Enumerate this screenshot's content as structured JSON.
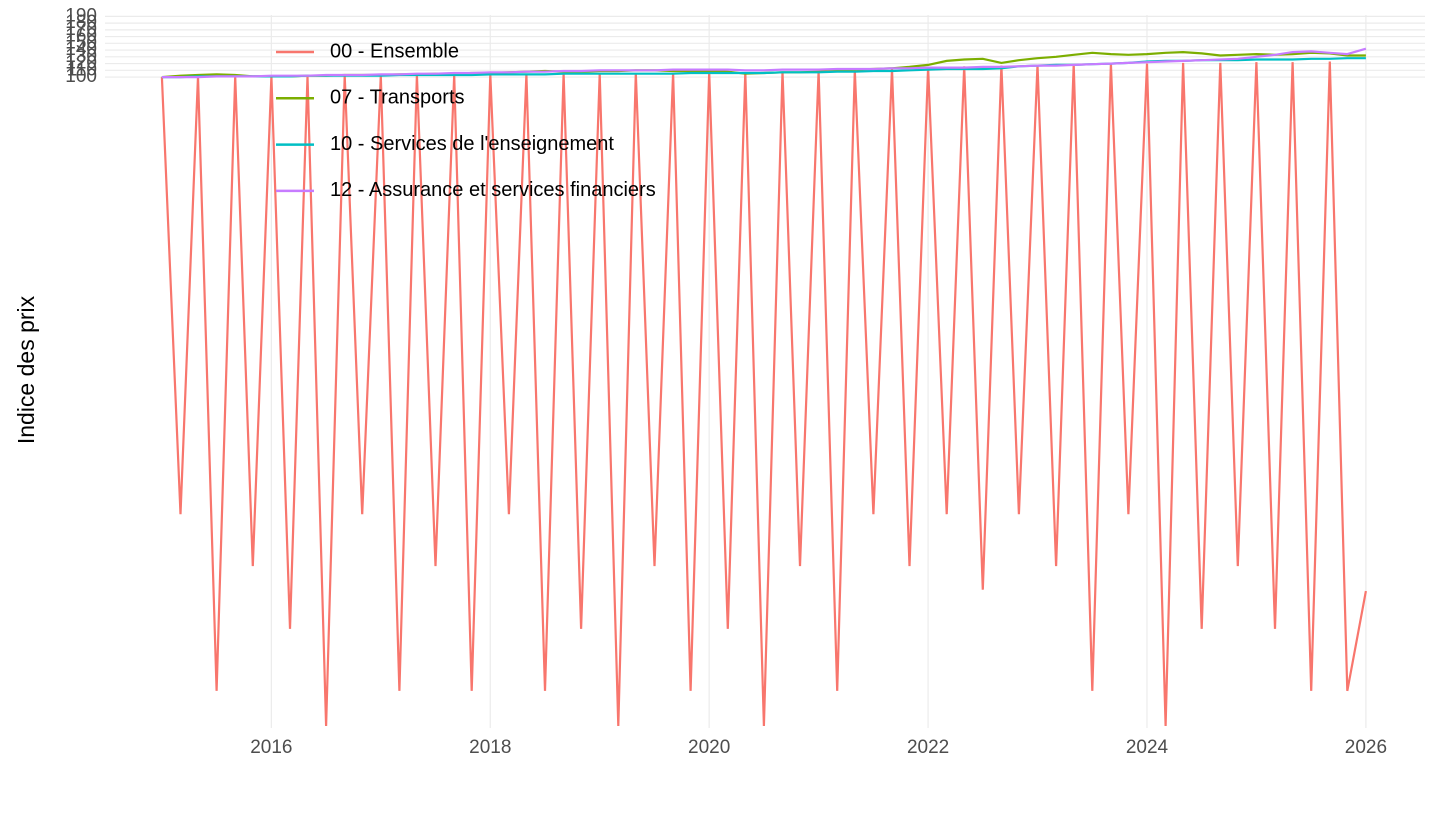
{
  "chart_data": {
    "type": "line",
    "y_label": "Indice des prix",
    "x": [
      2015,
      2015.17,
      2015.33,
      2015.5,
      2015.67,
      2015.83,
      2016,
      2016.17,
      2016.33,
      2016.5,
      2016.67,
      2016.83,
      2017,
      2017.17,
      2017.33,
      2017.5,
      2017.67,
      2017.83,
      2018,
      2018.17,
      2018.33,
      2018.5,
      2018.67,
      2018.83,
      2019,
      2019.17,
      2019.33,
      2019.5,
      2019.67,
      2019.83,
      2020,
      2020.17,
      2020.33,
      2020.5,
      2020.67,
      2020.83,
      2021,
      2021.17,
      2021.33,
      2021.5,
      2021.67,
      2021.83,
      2022,
      2022.17,
      2022.33,
      2022.5,
      2022.67,
      2022.83,
      2023,
      2023.17,
      2023.33,
      2023.5,
      2023.67,
      2023.83,
      2024,
      2024.17,
      2024.33,
      2024.5,
      2024.67,
      2024.83,
      2025,
      2025.17,
      2025.33,
      2025.5,
      2025.67,
      2025.83,
      2026
    ],
    "series": [
      {
        "name": "00 - Ensemble",
        "color": "#F8766D",
        "values": [
          100,
          -548,
          101,
          -810,
          101,
          -625,
          101,
          -718,
          101,
          -862,
          102,
          -548,
          102,
          -810,
          103,
          -625,
          103,
          -810,
          104,
          -548,
          104,
          -810,
          105,
          -718,
          105,
          -862,
          106,
          -625,
          106,
          -810,
          107,
          -718,
          107,
          -862,
          108,
          -625,
          109,
          -810,
          110,
          -548,
          112,
          -625,
          114,
          -548,
          116,
          -660,
          117,
          -548,
          118,
          -625,
          119,
          -810,
          120,
          -548,
          120,
          -862,
          121,
          -718,
          121,
          -625,
          122,
          -718,
          122,
          -810,
          123,
          -810,
          -662
        ]
      },
      {
        "name": "07 - Transports",
        "color": "#7CAE00",
        "values": [
          100,
          102,
          103,
          104,
          103,
          101,
          101,
          101,
          102,
          102,
          103,
          103,
          103,
          104,
          104,
          105,
          105,
          106,
          106,
          107,
          108,
          109,
          108,
          108,
          109,
          109,
          110,
          110,
          109,
          109,
          109,
          108,
          105,
          106,
          107,
          107,
          108,
          109,
          111,
          112,
          113,
          115,
          118,
          124,
          126,
          127,
          121,
          125,
          128,
          130,
          133,
          136,
          134,
          133,
          134,
          136,
          137,
          135,
          132,
          133,
          134,
          133,
          134,
          136,
          135,
          132,
          132
        ]
      },
      {
        "name": "10 - Services de l'enseignement",
        "color": "#00BFC4",
        "values": [
          100,
          100,
          101,
          101,
          101,
          101,
          101,
          101,
          102,
          102,
          102,
          102,
          102,
          103,
          103,
          103,
          103,
          103,
          104,
          104,
          104,
          104,
          105,
          105,
          105,
          105,
          105,
          105,
          105,
          106,
          106,
          106,
          106,
          106,
          107,
          107,
          107,
          108,
          108,
          109,
          109,
          110,
          111,
          112,
          112,
          112,
          113,
          116,
          117,
          118,
          118,
          119,
          120,
          121,
          123,
          124,
          124,
          125,
          125,
          125,
          126,
          126,
          126,
          127,
          127,
          128,
          128
        ]
      },
      {
        "name": "12 - Assurance et services financiers",
        "color": "#C77CFF",
        "values": [
          100,
          100,
          100,
          101,
          101,
          101,
          102,
          102,
          102,
          103,
          103,
          103,
          104,
          104,
          105,
          105,
          106,
          106,
          107,
          107,
          108,
          108,
          109,
          109,
          110,
          110,
          110,
          110,
          111,
          111,
          111,
          111,
          110,
          110,
          111,
          111,
          111,
          112,
          112,
          112,
          113,
          113,
          114,
          114,
          114,
          115,
          115,
          116,
          117,
          117,
          118,
          119,
          120,
          121,
          122,
          123,
          124,
          125,
          126,
          127,
          130,
          133,
          137,
          138,
          136,
          134,
          142
        ]
      }
    ],
    "xlim": [
      2014.48,
      2026.54
    ],
    "xticks": [
      2016,
      2018,
      2020,
      2022,
      2024,
      2026
    ],
    "ylim": [
      -865,
      192
    ],
    "yticks": [
      100,
      110,
      120,
      130,
      140,
      150,
      160,
      170,
      180,
      190
    ],
    "grid": true,
    "legend": "top-left"
  }
}
